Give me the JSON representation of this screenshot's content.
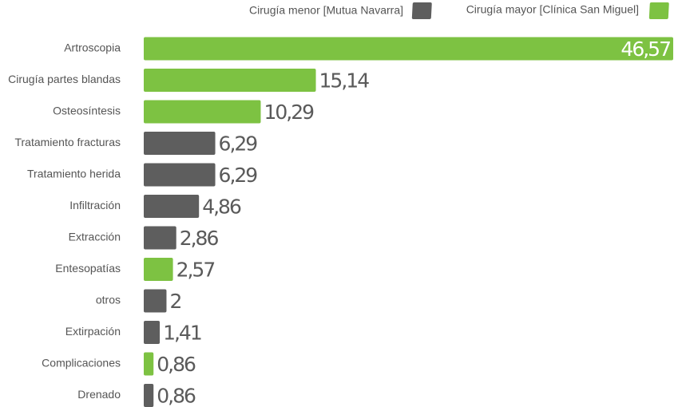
{
  "chart_data": {
    "type": "bar",
    "orientation": "horizontal",
    "categories": [
      "Artroscopia",
      "Cirugía partes blandas",
      "Osteosíntesis",
      "Tratamiento fracturas",
      "Tratamiento herida",
      "Infiltración",
      "Extracción",
      "Entesopatías",
      "otros",
      "Extirpación",
      "Complicaciones",
      "Drenado"
    ],
    "series": [
      {
        "name": "Cirugía  menor [Mutua Navarra]",
        "color": "#5e5e5e",
        "values": [
          null,
          null,
          null,
          6.29,
          6.29,
          4.86,
          2.86,
          null,
          2,
          1.41,
          null,
          0.86
        ],
        "value_labels": [
          null,
          null,
          null,
          "6,29",
          "6,29",
          "4,86",
          "2,86",
          null,
          "2",
          "1,41",
          null,
          "0,86"
        ]
      },
      {
        "name": "Cirugía  mayor [Clínica San Miguel]",
        "color": "#7dc242",
        "values": [
          46.57,
          15.14,
          10.29,
          null,
          null,
          null,
          null,
          2.57,
          null,
          null,
          0.86,
          null
        ],
        "value_labels": [
          "46,57",
          "15,14",
          "10,29",
          null,
          null,
          null,
          null,
          "2,57",
          null,
          null,
          "0,86",
          null
        ]
      }
    ]
  }
}
